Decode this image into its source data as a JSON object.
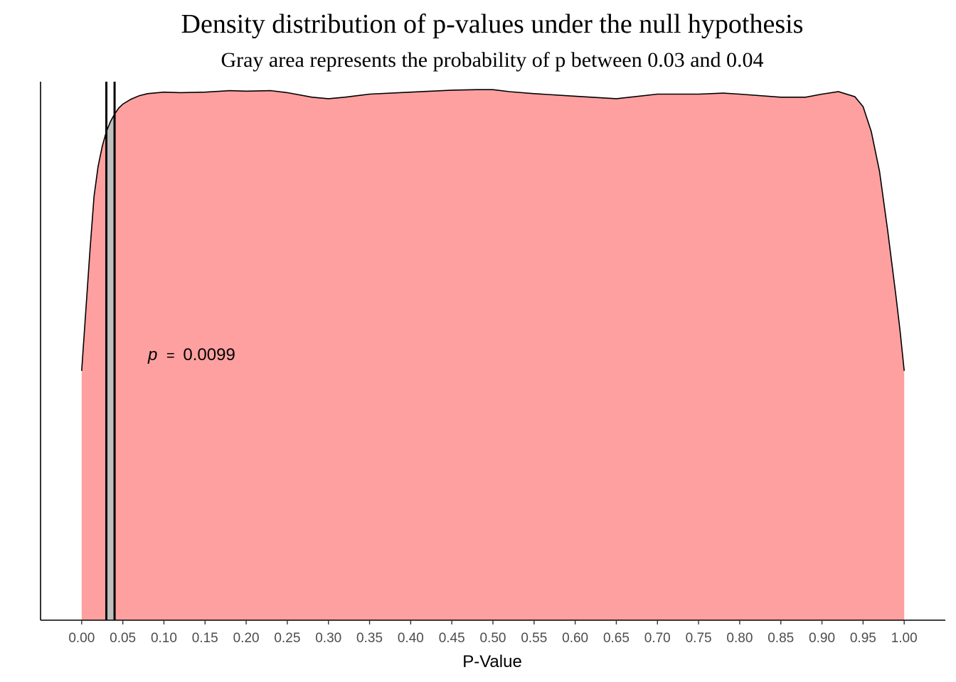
{
  "chart_data": {
    "type": "area",
    "title": "Density distribution of p-values under the null hypothesis",
    "subtitle": "Gray area represents the probability of p between 0.03 and 0.04",
    "xlabel": "P-Value",
    "ylabel": "",
    "xlim": [
      -0.05,
      1.05
    ],
    "ylim": [
      0,
      1.08
    ],
    "x_ticks": [
      "0.00",
      "0.05",
      "0.10",
      "0.15",
      "0.20",
      "0.25",
      "0.30",
      "0.35",
      "0.40",
      "0.45",
      "0.50",
      "0.55",
      "0.60",
      "0.65",
      "0.70",
      "0.75",
      "0.80",
      "0.85",
      "0.90",
      "0.95",
      "1.00"
    ],
    "density": {
      "x": [
        0.0,
        0.005,
        0.01,
        0.015,
        0.02,
        0.025,
        0.03,
        0.035,
        0.04,
        0.045,
        0.05,
        0.06,
        0.07,
        0.08,
        0.1,
        0.12,
        0.15,
        0.18,
        0.2,
        0.23,
        0.25,
        0.28,
        0.3,
        0.32,
        0.35,
        0.4,
        0.45,
        0.48,
        0.5,
        0.52,
        0.55,
        0.6,
        0.65,
        0.7,
        0.75,
        0.78,
        0.8,
        0.85,
        0.88,
        0.9,
        0.92,
        0.94,
        0.95,
        0.96,
        0.97,
        0.98,
        0.99,
        0.995,
        1.0
      ],
      "y": [
        0.5,
        0.62,
        0.74,
        0.85,
        0.91,
        0.95,
        0.98,
        1.0,
        1.015,
        1.027,
        1.035,
        1.045,
        1.052,
        1.056,
        1.059,
        1.058,
        1.059,
        1.062,
        1.061,
        1.062,
        1.058,
        1.049,
        1.046,
        1.049,
        1.055,
        1.059,
        1.063,
        1.064,
        1.064,
        1.06,
        1.056,
        1.051,
        1.046,
        1.055,
        1.055,
        1.057,
        1.055,
        1.049,
        1.049,
        1.055,
        1.06,
        1.05,
        1.03,
        0.98,
        0.9,
        0.78,
        0.65,
        0.58,
        0.5
      ],
      "color": "#ffa0a0"
    },
    "shaded_interval": {
      "from": 0.03,
      "to": 0.04,
      "color": "#bebebe"
    },
    "vlines": [
      0.03,
      0.04
    ],
    "annotation": {
      "p_symbol": "p",
      "equals": "=",
      "value": "0.0099",
      "x": 0.08,
      "y": 0.5
    },
    "legend": "none",
    "grid": false
  }
}
